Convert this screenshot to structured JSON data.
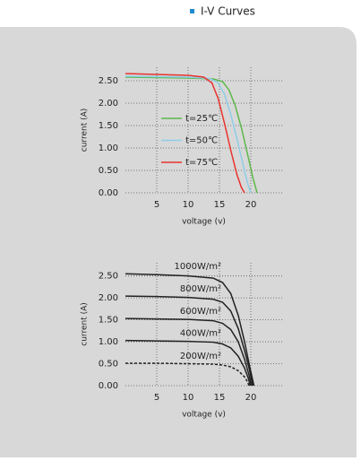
{
  "header": {
    "title": "I-V Curves"
  },
  "chart_data": [
    {
      "type": "line",
      "xlabel": "voltage  (v)",
      "ylabel": "current (A)",
      "xlim": [
        0,
        25
      ],
      "xticks": [
        5,
        10,
        15,
        20
      ],
      "ylim": [
        0,
        2.8
      ],
      "yticks": [
        {
          "value": 0,
          "label": "0.00"
        },
        {
          "value": 0.5,
          "label": "0.50"
        },
        {
          "value": 1,
          "label": "1.00"
        },
        {
          "value": 1.5,
          "label": "1.50"
        },
        {
          "value": 2,
          "label": "2.00"
        },
        {
          "value": 2.5,
          "label": "2.50"
        }
      ],
      "grid": true,
      "legend": "center-left",
      "series": [
        {
          "name": "t=25℃",
          "color": "#5cb84a",
          "x": [
            0,
            5,
            10,
            14,
            15.5,
            16.5,
            17.5,
            18.5,
            19.5,
            20.3,
            21
          ],
          "values": [
            2.58,
            2.57,
            2.56,
            2.54,
            2.48,
            2.3,
            1.95,
            1.45,
            0.85,
            0.35,
            0
          ]
        },
        {
          "name": "t=50℃",
          "color": "#8ecde8",
          "x": [
            0,
            5,
            10,
            13.5,
            14.8,
            15.8,
            16.8,
            17.8,
            18.8,
            19.5,
            20
          ],
          "values": [
            2.6,
            2.59,
            2.58,
            2.55,
            2.45,
            2.2,
            1.75,
            1.2,
            0.6,
            0.2,
            0
          ]
        },
        {
          "name": "t=75℃",
          "color": "#e8322c",
          "x": [
            0,
            5,
            10,
            12.5,
            13.8,
            14.8,
            15.8,
            16.8,
            17.8,
            18.5,
            19
          ],
          "values": [
            2.66,
            2.64,
            2.62,
            2.58,
            2.45,
            2.1,
            1.55,
            0.95,
            0.4,
            0.12,
            0
          ]
        }
      ]
    },
    {
      "type": "line",
      "xlabel": "voltage  (v)",
      "ylabel": "current  (A)",
      "xlim": [
        0,
        25
      ],
      "xticks": [
        5,
        10,
        15,
        20
      ],
      "ylim": [
        0,
        2.8
      ],
      "yticks": [
        {
          "value": 0,
          "label": "0.00"
        },
        {
          "value": 0.5,
          "label": "0.50"
        },
        {
          "value": 1,
          "label": "1.00"
        },
        {
          "value": 1.5,
          "label": "1.50"
        },
        {
          "value": 2,
          "label": "2.00"
        },
        {
          "value": 2.5,
          "label": "2.50"
        }
      ],
      "grid": true,
      "legend": "inline",
      "series": [
        {
          "name": "1000W/m²",
          "color": "#222222",
          "linestyle": "solid",
          "x": [
            0,
            5,
            10,
            14,
            15.5,
            16.8,
            18,
            19,
            19.8,
            20.5
          ],
          "values": [
            2.55,
            2.53,
            2.5,
            2.45,
            2.35,
            2.1,
            1.6,
            1.0,
            0.45,
            0
          ]
        },
        {
          "name": "800W/m²",
          "color": "#222222",
          "linestyle": "solid",
          "x": [
            0,
            5,
            10,
            14,
            15.5,
            16.8,
            18,
            19,
            19.8,
            20.3
          ],
          "values": [
            2.04,
            2.03,
            2.01,
            1.97,
            1.9,
            1.7,
            1.3,
            0.8,
            0.35,
            0
          ]
        },
        {
          "name": "600W/m²",
          "color": "#222222",
          "linestyle": "solid",
          "x": [
            0,
            5,
            10,
            14,
            15.5,
            16.8,
            18,
            19,
            19.7,
            20.1
          ],
          "values": [
            1.53,
            1.52,
            1.51,
            1.48,
            1.42,
            1.28,
            1.0,
            0.6,
            0.25,
            0
          ]
        },
        {
          "name": "400W/m²",
          "color": "#222222",
          "linestyle": "solid",
          "x": [
            0,
            5,
            10,
            14,
            15.5,
            16.8,
            18,
            19,
            19.6,
            19.9
          ],
          "values": [
            1.03,
            1.02,
            1.01,
            0.99,
            0.95,
            0.86,
            0.67,
            0.4,
            0.17,
            0
          ]
        },
        {
          "name": "200W/m²",
          "color": "#222222",
          "linestyle": "dashed",
          "x": [
            0,
            5,
            10,
            14,
            15.5,
            16.8,
            18,
            19,
            19.5,
            19.7
          ],
          "values": [
            0.51,
            0.51,
            0.5,
            0.49,
            0.47,
            0.43,
            0.34,
            0.2,
            0.08,
            0
          ]
        }
      ]
    }
  ]
}
